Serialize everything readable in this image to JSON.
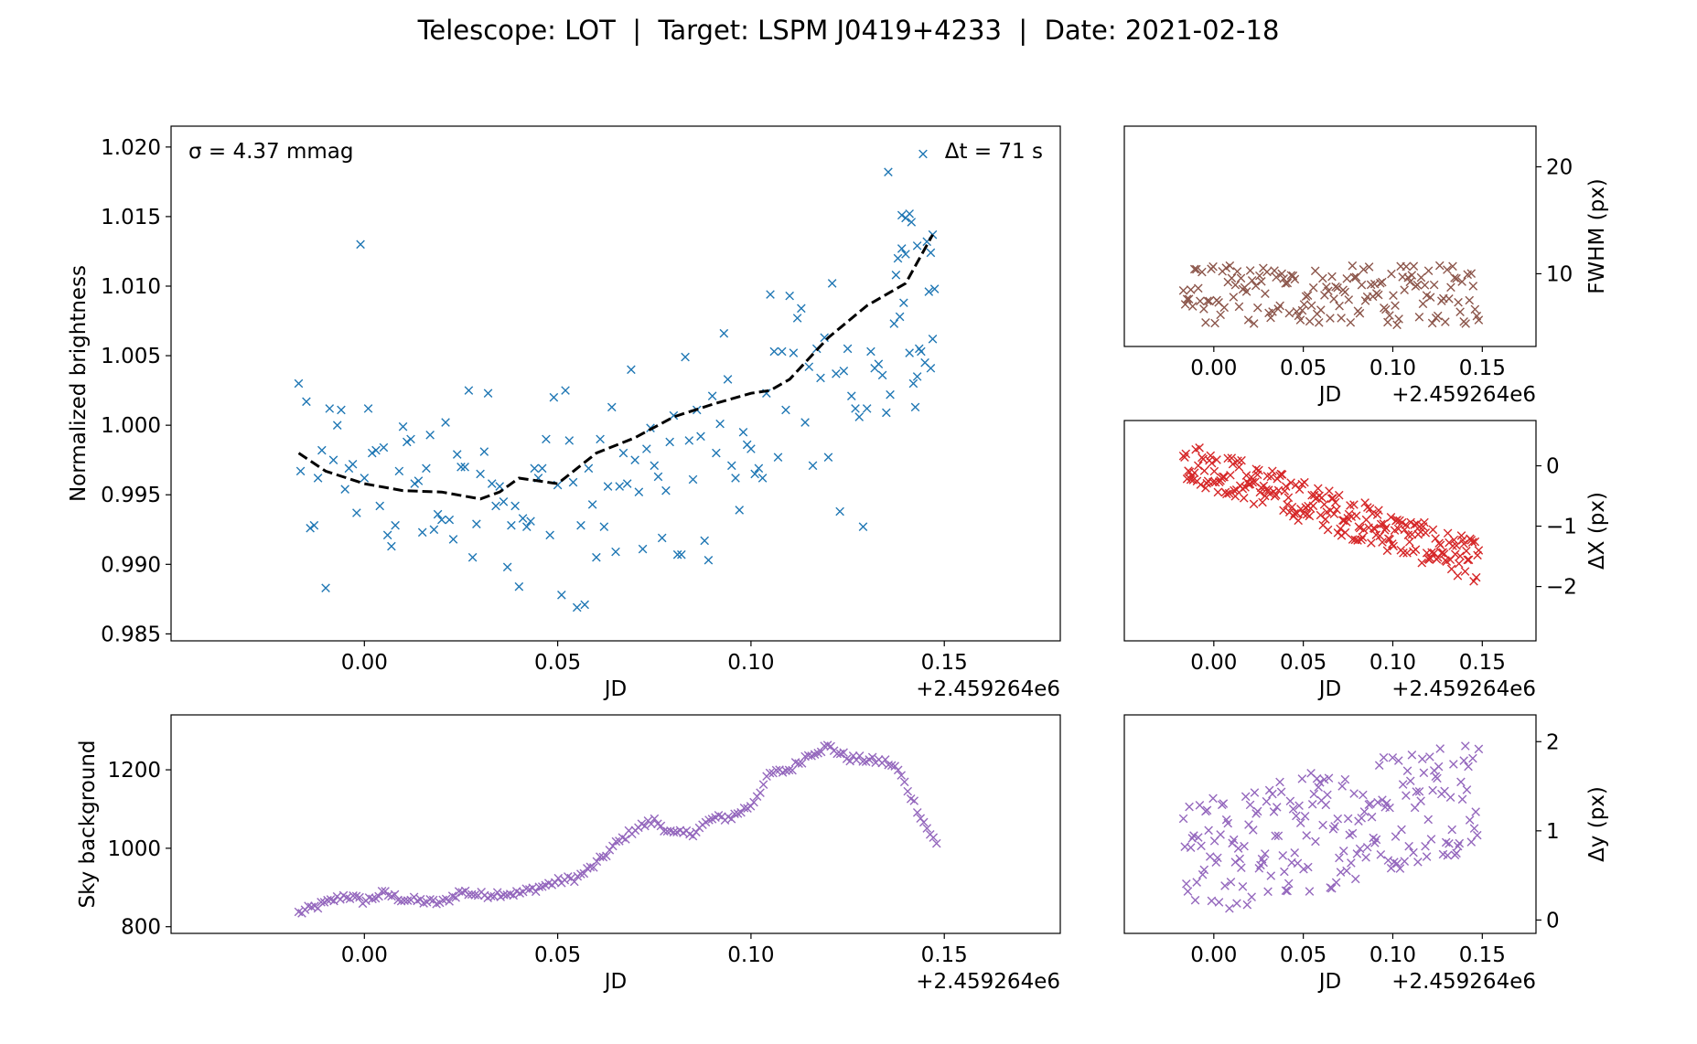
{
  "title": "Telescope: LOT  |  Target: LSPM J0419+4233  |  Date: 2021-02-18",
  "chart_data": [
    {
      "id": "brightness",
      "type": "scatter",
      "xlabel": "JD",
      "ylabel": "Normalized brightness",
      "x_offset_label": "+2.459264e6",
      "xlim": [
        -0.05,
        0.18
      ],
      "ylim": [
        0.9845,
        1.0215
      ],
      "xticks": [
        0.0,
        0.05,
        0.1,
        0.15
      ],
      "xtick_labels": [
        "0.00",
        "0.05",
        "0.10",
        "0.15"
      ],
      "yticks": [
        0.985,
        0.99,
        0.995,
        1.0,
        1.005,
        1.01,
        1.015,
        1.02
      ],
      "ytick_labels": [
        "0.985",
        "0.990",
        "0.995",
        "1.000",
        "1.005",
        "1.010",
        "1.015",
        "1.020"
      ],
      "annotations": [
        "σ = 4.37 mmag",
        "Δt = 71 s"
      ],
      "marker_color": "#1f77b4",
      "trend_color": "#000000",
      "x_range": [
        -0.017,
        0.147
      ],
      "trend": {
        "x": [
          -0.017,
          -0.01,
          0.0,
          0.01,
          0.02,
          0.03,
          0.035,
          0.04,
          0.05,
          0.06,
          0.07,
          0.08,
          0.09,
          0.1,
          0.105,
          0.11,
          0.12,
          0.13,
          0.14,
          0.147
        ],
        "y": [
          0.998,
          0.9967,
          0.9958,
          0.9953,
          0.9952,
          0.9947,
          0.9952,
          0.9962,
          0.9958,
          0.998,
          0.9991,
          1.0006,
          1.0015,
          1.0023,
          1.0025,
          1.0033,
          1.0063,
          1.0086,
          1.0102,
          1.0137
        ]
      },
      "points": [
        [
          -0.017,
          1.003
        ],
        [
          -0.0165,
          0.9967
        ],
        [
          -0.015,
          1.0017
        ],
        [
          -0.014,
          0.9926
        ],
        [
          -0.013,
          0.9928
        ],
        [
          -0.012,
          0.9962
        ],
        [
          -0.011,
          0.9982
        ],
        [
          -0.01,
          0.9883
        ],
        [
          -0.009,
          1.0012
        ],
        [
          -0.008,
          0.9975
        ],
        [
          -0.007,
          1.0
        ],
        [
          -0.006,
          1.0011
        ],
        [
          -0.005,
          0.9954
        ],
        [
          -0.004,
          0.9969
        ],
        [
          -0.003,
          0.9972
        ],
        [
          -0.002,
          0.9937
        ],
        [
          -0.001,
          1.013
        ],
        [
          0.0,
          0.9962
        ],
        [
          0.001,
          1.0012
        ],
        [
          0.002,
          0.998
        ],
        [
          0.003,
          0.9982
        ],
        [
          0.004,
          0.9942
        ],
        [
          0.005,
          0.9984
        ],
        [
          0.006,
          0.9921
        ],
        [
          0.007,
          0.9913
        ],
        [
          0.008,
          0.9928
        ],
        [
          0.009,
          0.9967
        ],
        [
          0.01,
          0.9999
        ],
        [
          0.011,
          0.9988
        ],
        [
          0.012,
          0.999
        ],
        [
          0.013,
          0.9958
        ],
        [
          0.014,
          0.996
        ],
        [
          0.015,
          0.9923
        ],
        [
          0.016,
          0.9969
        ],
        [
          0.017,
          0.9993
        ],
        [
          0.018,
          0.9925
        ],
        [
          0.019,
          0.9936
        ],
        [
          0.02,
          0.9932
        ],
        [
          0.021,
          1.0002
        ],
        [
          0.022,
          0.9932
        ],
        [
          0.023,
          0.9918
        ],
        [
          0.024,
          0.9979
        ],
        [
          0.025,
          0.997
        ],
        [
          0.026,
          0.997
        ],
        [
          0.027,
          1.0025
        ],
        [
          0.028,
          0.9905
        ],
        [
          0.029,
          0.9929
        ],
        [
          0.03,
          0.9965
        ],
        [
          0.031,
          0.9981
        ],
        [
          0.032,
          1.0023
        ],
        [
          0.033,
          0.9958
        ],
        [
          0.034,
          0.9942
        ],
        [
          0.035,
          0.9956
        ],
        [
          0.036,
          0.9945
        ],
        [
          0.037,
          0.9898
        ],
        [
          0.038,
          0.9928
        ],
        [
          0.039,
          0.9942
        ],
        [
          0.04,
          0.9884
        ],
        [
          0.041,
          0.9933
        ],
        [
          0.042,
          0.9927
        ],
        [
          0.043,
          0.9931
        ],
        [
          0.044,
          0.9969
        ],
        [
          0.045,
          0.9962
        ],
        [
          0.046,
          0.9969
        ],
        [
          0.047,
          0.999
        ],
        [
          0.048,
          0.9921
        ],
        [
          0.049,
          1.002
        ],
        [
          0.05,
          0.9957
        ],
        [
          0.051,
          0.9878
        ],
        [
          0.052,
          1.0025
        ],
        [
          0.053,
          0.9989
        ],
        [
          0.054,
          0.9959
        ],
        [
          0.055,
          0.9869
        ],
        [
          0.056,
          0.9928
        ],
        [
          0.057,
          0.9871
        ],
        [
          0.058,
          0.9969
        ],
        [
          0.059,
          0.9943
        ],
        [
          0.06,
          0.9905
        ],
        [
          0.061,
          0.999
        ],
        [
          0.062,
          0.9927
        ],
        [
          0.063,
          0.9956
        ],
        [
          0.064,
          1.0013
        ],
        [
          0.065,
          0.9909
        ],
        [
          0.066,
          0.9956
        ],
        [
          0.067,
          0.998
        ],
        [
          0.068,
          0.9958
        ],
        [
          0.069,
          1.004
        ],
        [
          0.07,
          0.9975
        ],
        [
          0.071,
          0.9952
        ],
        [
          0.072,
          0.9911
        ],
        [
          0.073,
          0.9983
        ],
        [
          0.074,
          0.9998
        ],
        [
          0.075,
          0.9971
        ],
        [
          0.076,
          0.9963
        ],
        [
          0.077,
          0.9919
        ],
        [
          0.078,
          0.9953
        ],
        [
          0.079,
          0.9988
        ],
        [
          0.08,
          1.0007
        ],
        [
          0.081,
          0.9907
        ],
        [
          0.082,
          0.9907
        ],
        [
          0.083,
          1.0049
        ],
        [
          0.084,
          0.9989
        ],
        [
          0.085,
          0.9961
        ],
        [
          0.086,
          1.0011
        ],
        [
          0.087,
          0.9992
        ],
        [
          0.088,
          0.9917
        ],
        [
          0.089,
          0.9903
        ],
        [
          0.09,
          1.0021
        ],
        [
          0.091,
          0.998
        ],
        [
          0.092,
          1.0001
        ],
        [
          0.093,
          1.0066
        ],
        [
          0.094,
          1.0033
        ],
        [
          0.095,
          0.9971
        ],
        [
          0.096,
          0.9962
        ],
        [
          0.097,
          0.9939
        ],
        [
          0.098,
          0.9995
        ],
        [
          0.099,
          0.9986
        ],
        [
          0.1,
          0.9983
        ],
        [
          0.101,
          0.9965
        ],
        [
          0.102,
          0.9969
        ],
        [
          0.103,
          0.9962
        ],
        [
          0.104,
          1.0023
        ],
        [
          0.105,
          1.0094
        ],
        [
          0.106,
          1.0053
        ],
        [
          0.107,
          0.9977
        ],
        [
          0.108,
          1.0053
        ],
        [
          0.109,
          1.0011
        ],
        [
          0.11,
          1.0093
        ],
        [
          0.111,
          1.0052
        ],
        [
          0.112,
          1.0077
        ],
        [
          0.113,
          1.0084
        ],
        [
          0.114,
          1.0002
        ],
        [
          0.115,
          1.0042
        ],
        [
          0.116,
          0.9971
        ],
        [
          0.117,
          1.0055
        ],
        [
          0.118,
          1.0034
        ],
        [
          0.119,
          1.0063
        ],
        [
          0.12,
          0.9977
        ],
        [
          0.121,
          1.0102
        ],
        [
          0.122,
          1.0037
        ],
        [
          0.123,
          0.9938
        ],
        [
          0.124,
          1.0039
        ],
        [
          0.125,
          1.0055
        ],
        [
          0.126,
          1.0021
        ],
        [
          0.127,
          1.0012
        ],
        [
          0.128,
          1.0006
        ],
        [
          0.129,
          0.9927
        ],
        [
          0.13,
          1.0012
        ],
        [
          0.131,
          1.0053
        ],
        [
          0.132,
          1.0041
        ],
        [
          0.133,
          1.0044
        ],
        [
          0.134,
          1.0036
        ],
        [
          0.135,
          1.0009
        ],
        [
          0.136,
          1.0022
        ],
        [
          0.137,
          1.0073
        ],
        [
          0.138,
          1.012
        ],
        [
          0.139,
          1.0127
        ],
        [
          0.14,
          1.0123
        ],
        [
          0.141,
          1.0052
        ],
        [
          0.142,
          1.003
        ],
        [
          0.1425,
          1.0013
        ],
        [
          0.143,
          1.0035
        ],
        [
          0.1435,
          1.0055
        ],
        [
          0.144,
          1.0053
        ],
        [
          0.145,
          1.0045
        ],
        [
          0.146,
          1.0096
        ],
        [
          0.1465,
          1.0041
        ],
        [
          0.147,
          1.0062
        ],
        [
          0.1355,
          1.0182
        ],
        [
          0.139,
          1.0151
        ],
        [
          0.141,
          1.0152
        ],
        [
          0.143,
          1.0129
        ],
        [
          0.1445,
          1.0195
        ],
        [
          0.1455,
          1.0132
        ],
        [
          0.1465,
          1.0124
        ],
        [
          0.147,
          1.0137
        ],
        [
          0.1475,
          1.0098
        ],
        [
          0.1385,
          1.0078
        ],
        [
          0.1395,
          1.0088
        ],
        [
          0.14,
          1.0149
        ],
        [
          0.1415,
          1.0146
        ],
        [
          0.1375,
          1.0108
        ]
      ]
    },
    {
      "id": "sky",
      "type": "scatter",
      "xlabel": "JD",
      "ylabel": "Sky background",
      "x_offset_label": "+2.459264e6",
      "xlim": [
        -0.05,
        0.18
      ],
      "ylim": [
        783,
        1340
      ],
      "xticks": [
        0.0,
        0.05,
        0.1,
        0.15
      ],
      "xtick_labels": [
        "0.00",
        "0.05",
        "0.10",
        "0.15"
      ],
      "yticks": [
        800,
        1000,
        1200
      ],
      "ytick_labels": [
        "800",
        "1000",
        "1200"
      ],
      "marker_color": "#9467bd",
      "x_range": [
        -0.017,
        0.148
      ],
      "curve": {
        "x": [
          -0.017,
          -0.01,
          -0.005,
          0.0,
          0.005,
          0.01,
          0.015,
          0.02,
          0.025,
          0.03,
          0.035,
          0.04,
          0.045,
          0.05,
          0.055,
          0.06,
          0.065,
          0.07,
          0.075,
          0.08,
          0.085,
          0.09,
          0.095,
          0.1,
          0.105,
          0.11,
          0.115,
          0.12,
          0.125,
          0.13,
          0.135,
          0.138,
          0.142,
          0.145,
          0.148
        ],
        "y": [
          835,
          860,
          880,
          865,
          885,
          870,
          865,
          860,
          890,
          880,
          885,
          885,
          900,
          915,
          925,
          960,
          1010,
          1050,
          1070,
          1035,
          1040,
          1075,
          1080,
          1110,
          1190,
          1200,
          1240,
          1260,
          1230,
          1225,
          1220,
          1200,
          1120,
          1060,
          1010
        ]
      }
    },
    {
      "id": "fwhm",
      "type": "scatter",
      "xlabel": "JD",
      "ylabel": "FWHM (px)",
      "x_offset_label": "+2.459264e6",
      "xlim": [
        -0.05,
        0.18
      ],
      "ylim": [
        3.2,
        23.8
      ],
      "xticks": [
        0.0,
        0.05,
        0.1,
        0.15
      ],
      "xtick_labels": [
        "0.00",
        "0.05",
        "0.10",
        "0.15"
      ],
      "yticks": [
        10,
        20
      ],
      "ytick_labels": [
        "10",
        "20"
      ],
      "marker_color": "#8c564b",
      "x_range": [
        -0.017,
        0.148
      ],
      "y_center": 8.0,
      "y_spread": 2.8
    },
    {
      "id": "dx",
      "type": "scatter",
      "xlabel": "JD",
      "ylabel": "ΔX (px)",
      "x_offset_label": "+2.459264e6",
      "xlim": [
        -0.05,
        0.18
      ],
      "ylim": [
        -2.9,
        0.75
      ],
      "xticks": [
        0.0,
        0.05,
        0.1,
        0.15
      ],
      "xtick_labels": [
        "0.00",
        "0.05",
        "0.10",
        "0.15"
      ],
      "yticks": [
        -2,
        -1,
        0
      ],
      "ytick_labels": [
        "−2",
        "−1",
        "0"
      ],
      "marker_color": "#d62728",
      "x_range": [
        -0.017,
        0.148
      ],
      "y_start": 0.1,
      "y_end": -1.6,
      "y_spread": 0.35
    },
    {
      "id": "dy",
      "type": "scatter",
      "xlabel": "JD",
      "ylabel": "Δy (px)",
      "x_offset_label": "+2.459264e6",
      "xlim": [
        -0.05,
        0.18
      ],
      "ylim": [
        -0.15,
        2.3
      ],
      "xticks": [
        0.0,
        0.05,
        0.1,
        0.15
      ],
      "xtick_labels": [
        "0.00",
        "0.05",
        "0.10",
        "0.15"
      ],
      "yticks": [
        0,
        1,
        2
      ],
      "ytick_labels": [
        "0",
        "1",
        "2"
      ],
      "marker_color": "#9467bd",
      "x_range": [
        -0.017,
        0.148
      ],
      "y_start": 0.6,
      "y_end": 1.5,
      "y_spread": 0.7
    }
  ]
}
